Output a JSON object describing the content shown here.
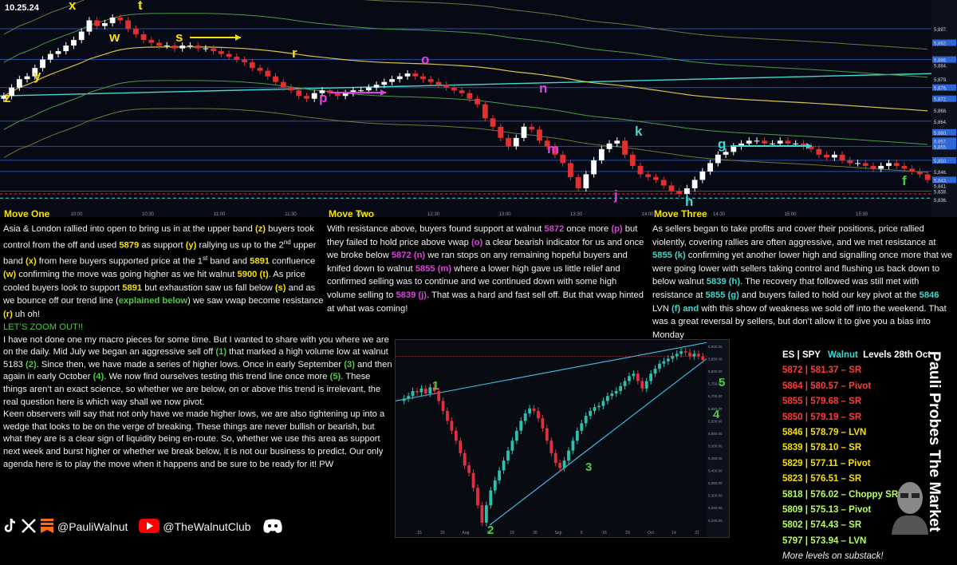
{
  "header": {
    "date": "10.25.24"
  },
  "colors": {
    "yellow": "#f5e000",
    "magenta": "#e040e0",
    "cyan": "#3fd9d0",
    "green": "#4ecb3f",
    "red": "#ff3b3b",
    "lime": "#b7ff5a"
  },
  "chart_data": [
    {
      "type": "line",
      "name": "intraday",
      "ylim": [
        5832,
        5905
      ],
      "y_ticks": [
        "5,897.",
        "5,892.",
        "5,886.",
        "5,884.",
        "5,879.",
        "5,876.",
        "5,872.",
        "5,868.",
        "5,864.",
        "5,860.",
        "5,857.",
        "5,855.",
        "5,850.",
        "5,846.",
        "5,843.",
        "5,841.",
        "5,839.",
        "5,836."
      ],
      "x_ticks": [
        "10:00",
        "10:30",
        "11:00",
        "11:30",
        "12:00",
        "12:30",
        "13:00",
        "13:30",
        "14:00",
        "14:30",
        "15:00",
        "15:30"
      ],
      "series": [
        {
          "values": [
            5873,
            5876,
            5879,
            5880,
            5883,
            5886,
            5888,
            5889,
            5891,
            5893,
            5896,
            5900,
            5898,
            5899,
            5901,
            5900,
            5897,
            5895,
            5893,
            5892,
            5891,
            5891,
            5890,
            5891,
            5891,
            5890,
            5890,
            5889,
            5888,
            5887,
            5886,
            5885,
            5883,
            5882,
            5880,
            5878,
            5876,
            5875,
            5873,
            5872,
            5874,
            5875,
            5874,
            5873,
            5874,
            5875,
            5875,
            5876,
            5877,
            5878,
            5879,
            5880,
            5881,
            5880,
            5879,
            5878,
            5877,
            5876,
            5875,
            5874,
            5872,
            5870,
            5865,
            5862,
            5858,
            5855,
            5858,
            5862,
            5861,
            5857,
            5855,
            5852,
            5849,
            5844,
            5840,
            5845,
            5850,
            5854,
            5856,
            5857,
            5852,
            5848,
            5845,
            5844,
            5843,
            5841,
            5839,
            5838,
            5840,
            5843,
            5846,
            5849,
            5852,
            5853,
            5855,
            5856,
            5857,
            5857,
            5856,
            5856,
            5857,
            5856,
            5856,
            5855,
            5854,
            5852,
            5851,
            5852,
            5850,
            5849,
            5849,
            5848,
            5847,
            5848,
            5849,
            5848,
            5847,
            5846,
            5845,
            5843
          ]
        }
      ],
      "annotations": [
        "z",
        "y",
        "x",
        "w",
        "t",
        "s",
        "r",
        "p",
        "o",
        "n",
        "m",
        "j",
        "k",
        "h",
        "g",
        "f"
      ]
    },
    {
      "type": "line",
      "name": "daily",
      "ylim": [
        5180,
        5900
      ],
      "y_ticks": [
        "5,900.00",
        "5,850.00",
        "5,800.00",
        "5,750.00",
        "5,700.00",
        "5,650.00",
        "5,600.00",
        "5,550.00",
        "5,500.00",
        "5,450.00",
        "5,400.00",
        "5,350.00",
        "5,300.00",
        "5,250.00",
        "5,200.00"
      ],
      "x_ticks": [
        "15",
        "22",
        "Aug",
        "12",
        "19",
        "26",
        "Sep",
        "9",
        "16",
        "23",
        "Oct",
        "14",
        "21"
      ],
      "series": [
        {
          "values": [
            5690,
            5700,
            5720,
            5715,
            5730,
            5710,
            5735,
            5720,
            5680,
            5640,
            5600,
            5560,
            5520,
            5470,
            5420,
            5390,
            5330,
            5260,
            5190,
            5260,
            5320,
            5360,
            5400,
            5440,
            5480,
            5520,
            5560,
            5600,
            5630,
            5650,
            5640,
            5610,
            5570,
            5520,
            5470,
            5430,
            5410,
            5440,
            5480,
            5520,
            5560,
            5590,
            5620,
            5640,
            5655,
            5660,
            5680,
            5700,
            5710,
            5720,
            5740,
            5760,
            5780,
            5790,
            5760,
            5730,
            5760,
            5790,
            5810,
            5830,
            5840,
            5850,
            5860,
            5870,
            5880,
            5875,
            5860,
            5870,
            5860,
            5845
          ]
        }
      ],
      "annotations": [
        "1",
        "2",
        "3",
        "4",
        "5"
      ]
    }
  ],
  "moves": [
    {
      "title": "Move One"
    },
    {
      "title": "Move Two"
    },
    {
      "title": "Move Three"
    }
  ],
  "text": {
    "c1": [
      [
        "Asia & London rallied into open to bring us in at the upper band ",
        "(z)",
        "y"
      ],
      [
        " buyers took control from the off and used ",
        "5879",
        "y"
      ],
      [
        " as support ",
        "(y)",
        "y"
      ],
      [
        " rallying us up to the 2",
        "nd",
        "sup"
      ],
      [
        " upper band ",
        "(x)",
        "y"
      ],
      [
        " from here buyers supported price at the 1",
        "st",
        "sup"
      ],
      [
        " band and ",
        "5891",
        "y"
      ],
      [
        " confluence ",
        "(w)",
        "y"
      ],
      [
        " confirming the move was going higher as we hit walnut ",
        "5900 (t)",
        "y"
      ],
      [
        ". As price cooled buyers look to support ",
        "5891",
        "y"
      ],
      [
        " but exhaustion saw us fall below ",
        "(s)",
        "y"
      ],
      [
        " and as we bounce off our trend line (",
        "explained below",
        "g"
      ],
      [
        ") we saw vwap become resistance ",
        "(r)",
        "y"
      ],
      [
        " uh oh!",
        "",
        ""
      ]
    ],
    "c2": [
      [
        "With resistance above, buyers found support at walnut ",
        "5872",
        "m"
      ],
      [
        " once more ",
        "(p)",
        "m"
      ],
      [
        " but they failed to hold price above vwap ",
        "(o)",
        "m"
      ],
      [
        " a clear bearish indicator for us and once we broke below ",
        "5872 (n)",
        "m"
      ],
      [
        " we ran stops on any remaining hopeful buyers and knifed down to walnut ",
        "5855 (m)",
        "m"
      ],
      [
        " where a lower high gave us little relief and confirmed selling was to continue and we continued down with some high volume selling to ",
        "5839 (j)",
        "m"
      ],
      [
        ". That was a hard and fast sell off. But that vwap hinted at what was coming!",
        "",
        ""
      ]
    ],
    "c3": [
      [
        "As sellers began to take profits and cover their positions, price rallied violently, covering rallies are often aggressive, and we met resistance at ",
        "5855 (k)",
        "c"
      ],
      [
        " confirming yet another lower high and signalling once more that we were going lower with sellers taking control and flushing us back down to below walnut ",
        "5839 (h)",
        "c"
      ],
      [
        ". The recovery that followed was still met with resistance at ",
        "5855 (g)",
        "c"
      ],
      [
        " and buyers failed to hold our key pivot at the ",
        "5846",
        "c"
      ],
      [
        " LVN ",
        "(f) and",
        "c"
      ],
      [
        " with this show of weakness we sold off into the weekend. That was a great reversal by sellers, but don’t allow it to give you a bias into Monday",
        "",
        ""
      ]
    ],
    "zoom_head": "LET’S ZOOM OUT!!",
    "zoom": [
      [
        "I have not done one my macro pieces for some time. But I wanted to share with you where we are on the daily. Mid July we began an aggressive sell off ",
        "(1)",
        "g"
      ],
      [
        " that marked a high volume low at walnut 5183 ",
        "(2)",
        "g"
      ],
      [
        ". Since then, we have made a series of higher lows. Once in early September ",
        "(3)",
        "g"
      ],
      [
        " and then again in early October ",
        "(4)",
        "g"
      ],
      [
        ". We now find ourselves testing this trend line once more ",
        "(5)",
        "g"
      ],
      [
        ". These things aren’t an exact science, so whether we are below, on or above this trend is irrelevant, the real question here is which way shall we now pivot.",
        "",
        ""
      ],
      [
        "BR",
        "",
        ""
      ],
      [
        "Keen observers will say that not only have we made higher lows, we are also tightening up into a wedge that looks to be on the verge of breaking. These things are never bullish or bearish, but what they are is a clear sign of liquidity being en-route. So, whether we use this area as support next week and burst higher or whether we break below, it is not our business to predict. Our only agenda here is to play the move when it happens and be sure to be ready for it! PW",
        "",
        ""
      ]
    ]
  },
  "levels": {
    "header_prefix": "ES | SPY",
    "header_walnut": "Walnut",
    "header_suffix": "Levels 28th Oct",
    "rows": [
      {
        "text": "5872 | 581.37 – SR",
        "color": "#ff3b3b"
      },
      {
        "text": "5864 | 580.57 – Pivot",
        "color": "#ff3b3b"
      },
      {
        "text": "5855 | 579.68 – SR",
        "color": "#ff3b3b"
      },
      {
        "text": "5850 | 579.19 – SR",
        "color": "#ff3b3b"
      },
      {
        "text": "5846 | 578.79 – LVN",
        "color": "#f5e000"
      },
      {
        "text": "5839 | 578.10 – SR",
        "color": "#f5e000"
      },
      {
        "text": "5829 | 577.11 – Pivot",
        "color": "#f5e000"
      },
      {
        "text": "5823 | 576.51 – SR",
        "color": "#f5e000"
      },
      {
        "text": "5818 | 576.02 – Choppy SR",
        "color": "#b7ff5a"
      },
      {
        "text": "5809 | 575.13 – Pivot",
        "color": "#b7ff5a"
      },
      {
        "text": "5802 | 574.43 – SR",
        "color": "#b7ff5a"
      },
      {
        "text": "5797 | 573.94 – LVN",
        "color": "#b7ff5a"
      }
    ],
    "footer": "More levels on substack!"
  },
  "sidebar": {
    "title": "Pauli Probes The Market"
  },
  "social": {
    "handle1": "@PauliWalnut",
    "handle2": "@TheWalnutClub"
  },
  "icons": [
    "tiktok-icon",
    "x-icon",
    "substack-icon",
    "youtube-icon",
    "discord-icon"
  ]
}
